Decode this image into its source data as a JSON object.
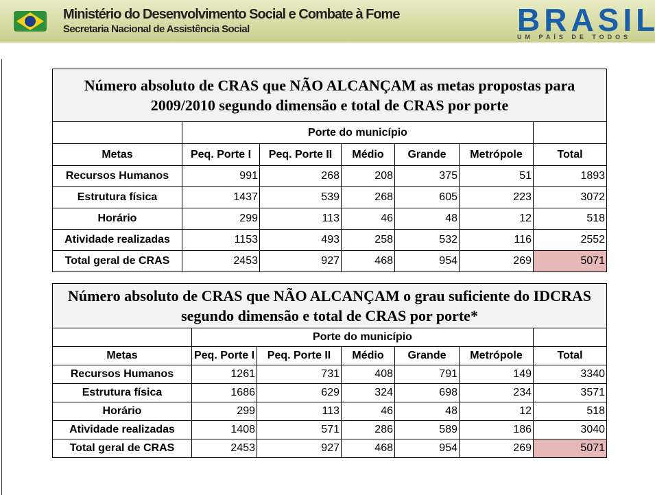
{
  "header": {
    "title": "Ministério do Desenvolvimento Social e Combate à Fome",
    "subtitle": "Secretaria Nacional de Assistência Social",
    "logo": "BRASIL",
    "slogan": "UM PAÍS DE TODOS"
  },
  "tables": [
    {
      "title": "Número absoluto de CRAS que NÃO ALCANÇAM  as metas propostas para 2009/2010 segundo dimensão e total de CRAS por porte",
      "group_header": "Porte do município",
      "columns": [
        "Metas",
        "Peq. Porte I",
        "Peq. Porte II",
        "Médio",
        "Grande",
        "Metrópole",
        "Total"
      ],
      "rows": [
        [
          "Recursos Humanos",
          991,
          268,
          208,
          375,
          51,
          1893
        ],
        [
          "Estrutura física",
          1437,
          539,
          268,
          605,
          223,
          3072
        ],
        [
          "Horário",
          299,
          113,
          46,
          48,
          12,
          518
        ],
        [
          "Atividade realizadas",
          1153,
          493,
          258,
          532,
          116,
          2552
        ],
        [
          "Total geral de CRAS",
          2453,
          927,
          468,
          954,
          269,
          5071
        ]
      ]
    },
    {
      "title": "Número absoluto de CRAS que NÃO ALCANÇAM  o grau suficiente do IDCRAS  segundo dimensão e total de CRAS por porte*",
      "group_header": "Porte do município",
      "columns": [
        "Metas",
        "Peq. Porte I",
        "Peq. Porte II",
        "Médio",
        "Grande",
        "Metrópole",
        "Total"
      ],
      "rows": [
        [
          "Recursos Humanos",
          1261,
          731,
          408,
          791,
          149,
          3340
        ],
        [
          "Estrutura física",
          1686,
          629,
          324,
          698,
          234,
          3571
        ],
        [
          "Horário",
          299,
          113,
          46,
          48,
          12,
          518
        ],
        [
          "Atividade realizadas",
          1408,
          571,
          286,
          589,
          186,
          3040
        ],
        [
          "Total geral de CRAS",
          2453,
          927,
          468,
          954,
          269,
          5071
        ]
      ]
    }
  ]
}
